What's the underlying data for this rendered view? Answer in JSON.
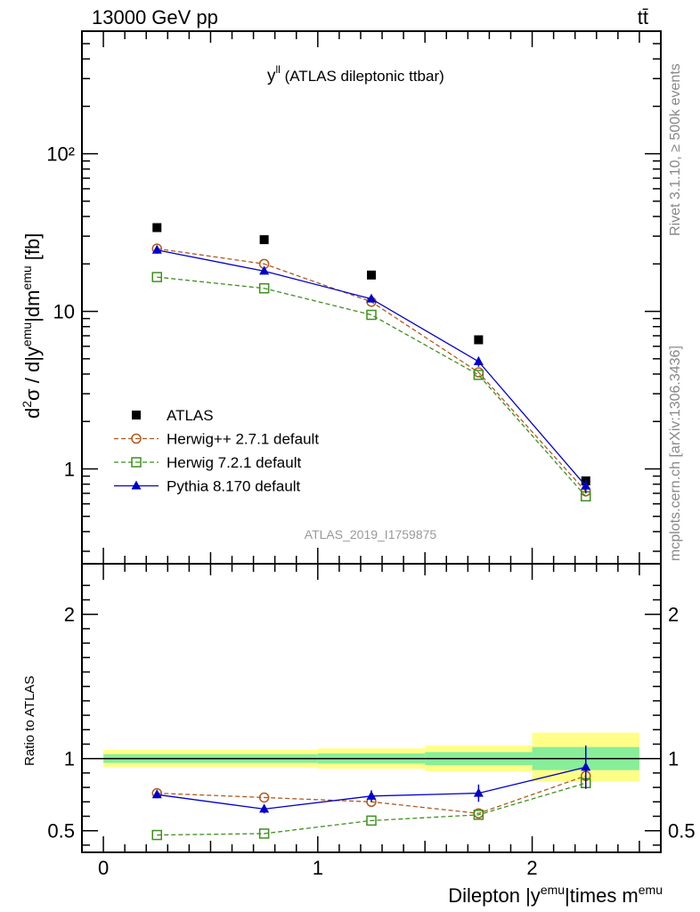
{
  "header": {
    "left": "13000 GeV pp",
    "right": "tt̄"
  },
  "side_labels": {
    "top": "Rivet 3.1.10, ≥ 500k events",
    "bottom": "mcplots.cern.ch [arXiv:1306.3436]"
  },
  "chart_data": [
    {
      "type": "scatter",
      "title": "y^ll (ATLAS dileptonic ttbar)",
      "title_main": "y",
      "title_sup": "ll",
      "title_rest": " (ATLAS dileptonic ttbar)",
      "analysis_label": "ATLAS_2019_I1759875",
      "xlabel": "Dilepton |y^emu|times m^emu",
      "ylabel": "d²σ / d|y^emu|dm^emu [fb]",
      "yscale": "log",
      "xlim": [
        -0.1,
        2.6
      ],
      "ylim": [
        0.25,
        600
      ],
      "legend_position": "bottom-left",
      "x": [
        0.25,
        0.75,
        1.25,
        1.75,
        2.25
      ],
      "series": [
        {
          "name": "ATLAS",
          "color": "#000000",
          "marker": "filled-square",
          "line": "none",
          "values": [
            34,
            28.5,
            17,
            6.6,
            0.84
          ]
        },
        {
          "name": "Herwig++ 2.7.1 default",
          "color": "#b05a1f",
          "marker": "open-circle",
          "line": "dashed",
          "values": [
            25,
            20,
            11.5,
            4.1,
            0.72
          ]
        },
        {
          "name": "Herwig 7.2.1 default",
          "color": "#3f8f1f",
          "marker": "open-square",
          "line": "dashed",
          "values": [
            16.5,
            14,
            9.5,
            3.95,
            0.67
          ]
        },
        {
          "name": "Pythia 8.170 default",
          "color": "#0000cc",
          "marker": "filled-triangle",
          "line": "solid",
          "values": [
            24.5,
            18,
            12,
            4.8,
            0.78
          ],
          "errors": [
            0.6,
            0.6,
            0.4,
            0.35,
            0.08
          ]
        }
      ]
    },
    {
      "type": "scatter",
      "ylabel": "Ratio to ATLAS",
      "xlabel": "Dilepton |y^emu|times m^emu",
      "xlim": [
        -0.1,
        2.6
      ],
      "ylim": [
        0.35,
        2.35
      ],
      "reference_line": 1,
      "bins": [
        {
          "lo": 0.0,
          "hi": 1.0,
          "band_inner": [
            0.97,
            1.03
          ],
          "band_outer": [
            0.94,
            1.06
          ]
        },
        {
          "lo": 1.0,
          "hi": 1.5,
          "band_inner": [
            0.965,
            1.035
          ],
          "band_outer": [
            0.93,
            1.07
          ]
        },
        {
          "lo": 1.5,
          "hi": 2.0,
          "band_inner": [
            0.955,
            1.045
          ],
          "band_outer": [
            0.91,
            1.09
          ]
        },
        {
          "lo": 2.0,
          "hi": 2.5,
          "band_inner": [
            0.92,
            1.08
          ],
          "band_outer": [
            0.84,
            1.18
          ]
        }
      ],
      "x": [
        0.25,
        0.75,
        1.25,
        1.75,
        2.25
      ],
      "series": [
        {
          "name": "Herwig++ 2.7.1 default",
          "values": [
            0.76,
            0.73,
            0.7,
            0.62,
            0.88
          ]
        },
        {
          "name": "Herwig 7.2.1 default",
          "values": [
            0.47,
            0.48,
            0.57,
            0.61,
            0.83
          ]
        },
        {
          "name": "Pythia 8.170 default",
          "values": [
            0.75,
            0.65,
            0.74,
            0.76,
            0.94
          ],
          "errors": [
            0.02,
            0.03,
            0.04,
            0.06,
            0.15
          ]
        }
      ]
    }
  ],
  "axis_ticks": {
    "main_y": [
      {
        "value": 1,
        "label": "1"
      },
      {
        "value": 10,
        "label": "10"
      },
      {
        "value": 100,
        "label": "10²"
      }
    ],
    "ratio_y": [
      {
        "value": 0.5,
        "label": "0.5"
      },
      {
        "value": 1,
        "label": "1"
      },
      {
        "value": 2,
        "label": "2"
      }
    ],
    "x": [
      {
        "value": 0,
        "label": "0"
      },
      {
        "value": 1,
        "label": "1"
      },
      {
        "value": 2,
        "label": "2"
      }
    ]
  }
}
